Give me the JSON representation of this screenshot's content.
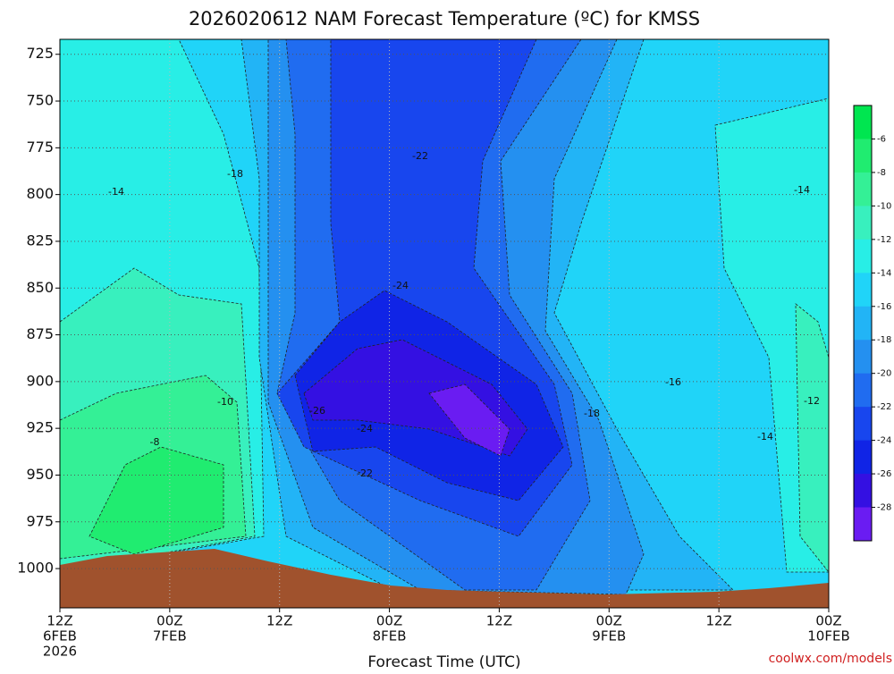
{
  "chart_data": {
    "type": "contour",
    "title": "2026020612 NAM Forecast Temperature (ºC) for KMSS",
    "xlabel": "Forecast Time (UTC)",
    "xticks": [
      [
        "12Z",
        "6FEB",
        "2026"
      ],
      [
        "00Z",
        "7FEB"
      ],
      [
        "12Z"
      ],
      [
        "00Z",
        "8FEB"
      ],
      [
        "12Z"
      ],
      [
        "00Z",
        "9FEB"
      ],
      [
        "12Z"
      ],
      [
        "00Z",
        "10FEB"
      ]
    ],
    "ylim": [
      1021,
      717
    ],
    "yticks": [
      725,
      750,
      775,
      800,
      825,
      850,
      875,
      900,
      925,
      950,
      975,
      1000
    ],
    "grid": true,
    "colorbar": {
      "levels": [
        -6,
        -8,
        -10,
        -12,
        -14,
        -16,
        -18,
        -20,
        -22,
        -24,
        -26,
        -28
      ],
      "colors": [
        "#00e650",
        "#20ec70",
        "#34f096",
        "#38f0be",
        "#28eee6",
        "#20d4f8",
        "#22b4f6",
        "#2490f0",
        "#206cf0",
        "#1846ee",
        "#1024e6",
        "#3410e2",
        "#6a1cf2"
      ]
    },
    "contour_labels": [
      -14,
      -18,
      -22,
      -24,
      -26,
      -24,
      -22,
      -10,
      -8,
      -18,
      -16,
      -12,
      -14,
      -14
    ],
    "credit": "coolwx.com/models"
  }
}
